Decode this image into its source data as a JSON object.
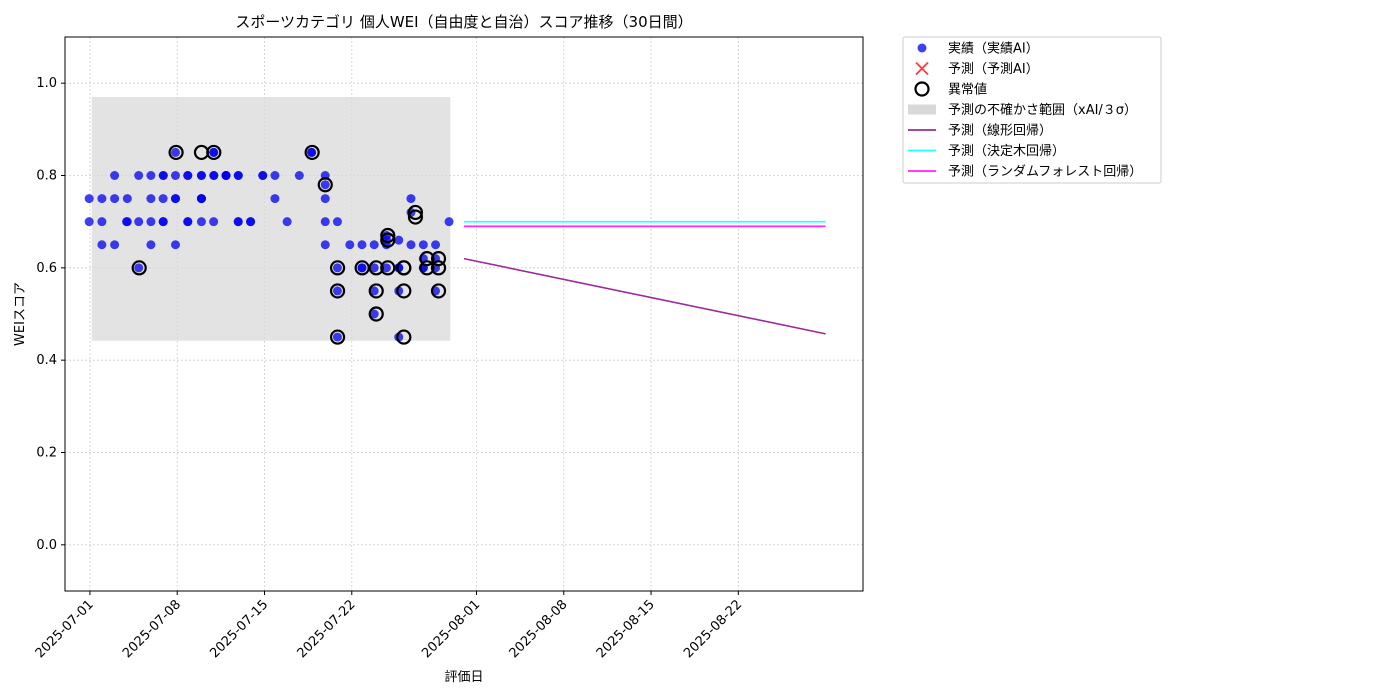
{
  "chart_data": {
    "type": "scatter",
    "title": "スポーツカテゴリ 個人WEI（自由度と自治）スコア推移（30日間）",
    "xlabel": "評価日",
    "ylabel": "WEIスコア",
    "xlim": [
      "2025-06-29",
      "2025-09-01"
    ],
    "ylim": [
      -0.1,
      1.1
    ],
    "yticks": [
      0.0,
      0.2,
      0.4,
      0.6,
      0.8,
      1.0
    ],
    "xticks": [
      "2025-07-01",
      "2025-07-08",
      "2025-07-15",
      "2025-07-22",
      "2025-08-01",
      "2025-08-08",
      "2025-08-15",
      "2025-08-22"
    ],
    "grid": true,
    "legend_position": "outside-top-right",
    "uncertainty_band": {
      "x": [
        "2025-07-01.5",
        "2025-07-29.8"
      ],
      "x_start": "2025-07-01",
      "x_end": "2025-07-29",
      "y": [
        0.442,
        0.97
      ]
    },
    "series": [
      {
        "name": "実績（実績AI）",
        "kind": "scatter",
        "color": "#0000ee",
        "points": [
          [
            "2025-07-01",
            0.75
          ],
          [
            "2025-07-01",
            0.7
          ],
          [
            "2025-07-02",
            0.65
          ],
          [
            "2025-07-02",
            0.75
          ],
          [
            "2025-07-02",
            0.7
          ],
          [
            "2025-07-03",
            0.75
          ],
          [
            "2025-07-03",
            0.8
          ],
          [
            "2025-07-03",
            0.65
          ],
          [
            "2025-07-04",
            0.7
          ],
          [
            "2025-07-04",
            0.75
          ],
          [
            "2025-07-04",
            0.7
          ],
          [
            "2025-07-05",
            0.8
          ],
          [
            "2025-07-05",
            0.7
          ],
          [
            "2025-07-05",
            0.6
          ],
          [
            "2025-07-06",
            0.65
          ],
          [
            "2025-07-06",
            0.75
          ],
          [
            "2025-07-06",
            0.7
          ],
          [
            "2025-07-06",
            0.8
          ],
          [
            "2025-07-07",
            0.7
          ],
          [
            "2025-07-07",
            0.75
          ],
          [
            "2025-07-07",
            0.8
          ],
          [
            "2025-07-07",
            0.8
          ],
          [
            "2025-07-07",
            0.7
          ],
          [
            "2025-07-08",
            0.8
          ],
          [
            "2025-07-08",
            0.85
          ],
          [
            "2025-07-08",
            0.65
          ],
          [
            "2025-07-08",
            0.75
          ],
          [
            "2025-07-08",
            0.75
          ],
          [
            "2025-07-09",
            0.8
          ],
          [
            "2025-07-09",
            0.7
          ],
          [
            "2025-07-09",
            0.7
          ],
          [
            "2025-07-09",
            0.8
          ],
          [
            "2025-07-10",
            0.8
          ],
          [
            "2025-07-10",
            0.75
          ],
          [
            "2025-07-10",
            0.8
          ],
          [
            "2025-07-10",
            0.75
          ],
          [
            "2025-07-10",
            0.7
          ],
          [
            "2025-07-10",
            0.75
          ],
          [
            "2025-07-11",
            0.7
          ],
          [
            "2025-07-11",
            0.85
          ],
          [
            "2025-07-11",
            0.8
          ],
          [
            "2025-07-11",
            0.8
          ],
          [
            "2025-07-11",
            0.85
          ],
          [
            "2025-07-12",
            0.8
          ],
          [
            "2025-07-12",
            0.8
          ],
          [
            "2025-07-12",
            0.8
          ],
          [
            "2025-07-12",
            0.8
          ],
          [
            "2025-07-13",
            0.8
          ],
          [
            "2025-07-13",
            0.7
          ],
          [
            "2025-07-13",
            0.7
          ],
          [
            "2025-07-13",
            0.8
          ],
          [
            "2025-07-14",
            0.7
          ],
          [
            "2025-07-14",
            0.7
          ],
          [
            "2025-07-15",
            0.8
          ],
          [
            "2025-07-15",
            0.8
          ],
          [
            "2025-07-16",
            0.75
          ],
          [
            "2025-07-16",
            0.8
          ],
          [
            "2025-07-17",
            0.7
          ],
          [
            "2025-07-18",
            0.8
          ],
          [
            "2025-07-19",
            0.85
          ],
          [
            "2025-07-19",
            0.85
          ],
          [
            "2025-07-20",
            0.8
          ],
          [
            "2025-07-20",
            0.75
          ],
          [
            "2025-07-20",
            0.78
          ],
          [
            "2025-07-20",
            0.7
          ],
          [
            "2025-07-20",
            0.65
          ],
          [
            "2025-07-21",
            0.6
          ],
          [
            "2025-07-21",
            0.7
          ],
          [
            "2025-07-21",
            0.55
          ],
          [
            "2025-07-21",
            0.45
          ],
          [
            "2025-07-22",
            0.65
          ],
          [
            "2025-07-23",
            0.65
          ],
          [
            "2025-07-23",
            0.6
          ],
          [
            "2025-07-23",
            0.6
          ],
          [
            "2025-07-24",
            0.55
          ],
          [
            "2025-07-24",
            0.5
          ],
          [
            "2025-07-24",
            0.65
          ],
          [
            "2025-07-24",
            0.6
          ],
          [
            "2025-07-25",
            0.6
          ],
          [
            "2025-07-25",
            0.65
          ],
          [
            "2025-07-25",
            0.67
          ],
          [
            "2025-07-25",
            0.66
          ],
          [
            "2025-07-26",
            0.6
          ],
          [
            "2025-07-26",
            0.66
          ],
          [
            "2025-07-26",
            0.55
          ],
          [
            "2025-07-26",
            0.45
          ],
          [
            "2025-07-26",
            0.6
          ],
          [
            "2025-07-27",
            0.75
          ],
          [
            "2025-07-27",
            0.72
          ],
          [
            "2025-07-27",
            0.65
          ],
          [
            "2025-07-28",
            0.6
          ],
          [
            "2025-07-28",
            0.62
          ],
          [
            "2025-07-28",
            0.65
          ],
          [
            "2025-07-28",
            0.6
          ],
          [
            "2025-07-29",
            0.62
          ],
          [
            "2025-07-29",
            0.55
          ],
          [
            "2025-07-29",
            0.6
          ],
          [
            "2025-07-29",
            0.65
          ],
          [
            "2025-07-30",
            0.7
          ]
        ]
      },
      {
        "name": "予測（予測AI）",
        "kind": "scatter-x",
        "color": "#ff3b3b",
        "points": []
      },
      {
        "name": "異常値",
        "kind": "ring",
        "color": "#000000",
        "points": [
          [
            "2025-07-05",
            0.6
          ],
          [
            "2025-07-08",
            0.85
          ],
          [
            "2025-07-10",
            0.85
          ],
          [
            "2025-07-11",
            0.85
          ],
          [
            "2025-07-19",
            0.85
          ],
          [
            "2025-07-20",
            0.78
          ],
          [
            "2025-07-21",
            0.6
          ],
          [
            "2025-07-21",
            0.55
          ],
          [
            "2025-07-21",
            0.45
          ],
          [
            "2025-07-23",
            0.6
          ],
          [
            "2025-07-24",
            0.6
          ],
          [
            "2025-07-24",
            0.55
          ],
          [
            "2025-07-24",
            0.5
          ],
          [
            "2025-07-25",
            0.6
          ],
          [
            "2025-07-25",
            0.67
          ],
          [
            "2025-07-25",
            0.66
          ],
          [
            "2025-07-26",
            0.6
          ],
          [
            "2025-07-26",
            0.6
          ],
          [
            "2025-07-26",
            0.55
          ],
          [
            "2025-07-26",
            0.45
          ],
          [
            "2025-07-27",
            0.72
          ],
          [
            "2025-07-27",
            0.71
          ],
          [
            "2025-07-28",
            0.6
          ],
          [
            "2025-07-28",
            0.62
          ],
          [
            "2025-07-29",
            0.6
          ],
          [
            "2025-07-29",
            0.62
          ],
          [
            "2025-07-29",
            0.55
          ]
        ]
      },
      {
        "name": "予測の不確かさ範囲（xAI/３σ）",
        "kind": "band",
        "color": "#d9d9d9"
      },
      {
        "name": "予測（線形回帰）",
        "kind": "line",
        "color": "#9b2a9b",
        "points": [
          [
            "2025-07-31",
            0.62
          ],
          [
            "2025-08-29",
            0.457
          ]
        ]
      },
      {
        "name": "予測（決定木回帰）",
        "kind": "line",
        "color": "#22ffff",
        "points": [
          [
            "2025-07-31",
            0.7
          ],
          [
            "2025-08-29",
            0.7
          ]
        ]
      },
      {
        "name": "予測（ランダムフォレスト回帰）",
        "kind": "line",
        "color": "#ff22ff",
        "points": [
          [
            "2025-07-31",
            0.69
          ],
          [
            "2025-08-29",
            0.69
          ]
        ]
      }
    ]
  }
}
